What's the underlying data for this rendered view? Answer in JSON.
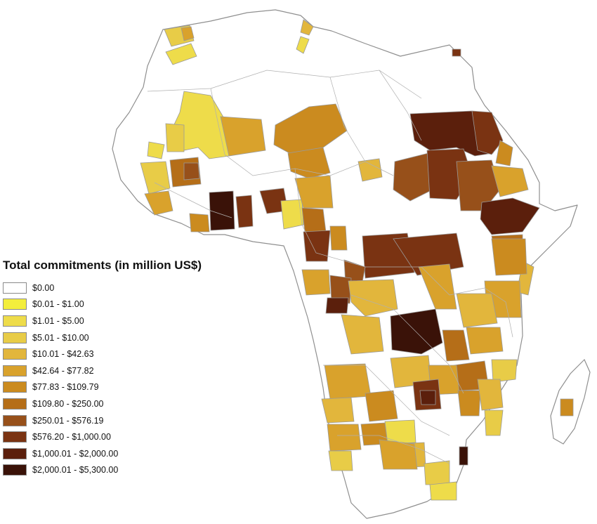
{
  "legend": {
    "title": "Total commitments (in million US$)",
    "classes": [
      {
        "label": "$0.00",
        "color": "#ffffff"
      },
      {
        "label": "$0.01 - $1.00",
        "color": "#f3ee3c"
      },
      {
        "label": "$1.01 - $5.00",
        "color": "#eedc4a"
      },
      {
        "label": "$5.01 - $10.00",
        "color": "#e8cc47"
      },
      {
        "label": "$10.01 - $42.63",
        "color": "#e2b63c"
      },
      {
        "label": "$42.64 - $77.82",
        "color": "#d9a22c"
      },
      {
        "label": "$77.83 - $109.79",
        "color": "#cb8b1f"
      },
      {
        "label": "$109.80 - $250.00",
        "color": "#b56e18"
      },
      {
        "label": "$250.01 - $576.19",
        "color": "#97501a"
      },
      {
        "label": "$576.20 - $1,000.00",
        "color": "#7a3312"
      },
      {
        "label": "$1,000.01 - $2,000.00",
        "color": "#5b1f0c"
      },
      {
        "label": "$2,000.01 - $5,300.00",
        "color": "#3a1208"
      }
    ]
  },
  "map": {
    "border_color": "#9a9a9a",
    "water_color": "#ffffff",
    "regions": [
      {
        "id": "nw-coast-1",
        "cls": 3
      },
      {
        "id": "nw-coast-2",
        "cls": 5
      },
      {
        "id": "nw-coast-3",
        "cls": 2
      },
      {
        "id": "north-small-1",
        "cls": 4
      },
      {
        "id": "north-small-2",
        "cls": 2
      },
      {
        "id": "sahel-west",
        "cls": 2
      },
      {
        "id": "sahel-west-2",
        "cls": 3
      },
      {
        "id": "sahel-mali-east",
        "cls": 5
      },
      {
        "id": "sahel-niger",
        "cls": 6
      },
      {
        "id": "sahel-niger-2",
        "cls": 6
      },
      {
        "id": "sahel-chad",
        "cls": 4
      },
      {
        "id": "sudan-north",
        "cls": 10
      },
      {
        "id": "sudan-east",
        "cls": 9
      },
      {
        "id": "sudan-west",
        "cls": 8
      },
      {
        "id": "sudan-central",
        "cls": 9
      },
      {
        "id": "sudan-south",
        "cls": 8
      },
      {
        "id": "eritrea",
        "cls": 6
      },
      {
        "id": "ethiopia-north",
        "cls": 5
      },
      {
        "id": "ethiopia-central",
        "cls": 10
      },
      {
        "id": "ethiopia-south",
        "cls": 7
      },
      {
        "id": "horn-east",
        "cls": 4
      },
      {
        "id": "west-1",
        "cls": 3
      },
      {
        "id": "west-2",
        "cls": 7
      },
      {
        "id": "west-3",
        "cls": 5
      },
      {
        "id": "west-4",
        "cls": 2
      },
      {
        "id": "west-5",
        "cls": 8
      },
      {
        "id": "ivory-core",
        "cls": 11
      },
      {
        "id": "ghana-1",
        "cls": 9
      },
      {
        "id": "coast-1",
        "cls": 6
      },
      {
        "id": "nigeria-1",
        "cls": 9
      },
      {
        "id": "nigeria-2",
        "cls": 2
      },
      {
        "id": "nigeria-3",
        "cls": 5
      },
      {
        "id": "nigeria-4",
        "cls": 7
      },
      {
        "id": "cameroon-1",
        "cls": 9
      },
      {
        "id": "cameroon-2",
        "cls": 6
      },
      {
        "id": "car-1",
        "cls": 9
      },
      {
        "id": "car-2",
        "cls": 9
      },
      {
        "id": "car-3",
        "cls": 8
      },
      {
        "id": "gabon-1",
        "cls": 5
      },
      {
        "id": "congo-1",
        "cls": 8
      },
      {
        "id": "congo-2",
        "cls": 10
      },
      {
        "id": "drc-north",
        "cls": 4
      },
      {
        "id": "drc-west",
        "cls": 4
      },
      {
        "id": "drc-core",
        "cls": 11
      },
      {
        "id": "drc-east",
        "cls": 5
      },
      {
        "id": "drc-east-2",
        "cls": 7
      },
      {
        "id": "kenya-1",
        "cls": 6
      },
      {
        "id": "kenya-2",
        "cls": 5
      },
      {
        "id": "tanzania-1",
        "cls": 4
      },
      {
        "id": "tanzania-2",
        "cls": 5
      },
      {
        "id": "tanzania-3",
        "cls": 7
      },
      {
        "id": "tanzania-4",
        "cls": 3
      },
      {
        "id": "angola-1",
        "cls": 5
      },
      {
        "id": "angola-2",
        "cls": 4
      },
      {
        "id": "angola-3",
        "cls": 6
      },
      {
        "id": "zambia-1",
        "cls": 4
      },
      {
        "id": "zambia-2",
        "cls": 5
      },
      {
        "id": "zambia-core",
        "cls": 9
      },
      {
        "id": "zambia-core-2",
        "cls": 10
      },
      {
        "id": "malawi",
        "cls": 6
      },
      {
        "id": "mozambique-1",
        "cls": 4
      },
      {
        "id": "mozambique-2",
        "cls": 3
      },
      {
        "id": "namibia-1",
        "cls": 5
      },
      {
        "id": "namibia-2",
        "cls": 3
      },
      {
        "id": "namibia-3",
        "cls": 6
      },
      {
        "id": "botswana-1",
        "cls": 2
      },
      {
        "id": "botswana-2",
        "cls": 4
      },
      {
        "id": "south-africa-1",
        "cls": 5
      },
      {
        "id": "south-africa-2",
        "cls": 3
      },
      {
        "id": "south-africa-3",
        "cls": 2
      },
      {
        "id": "swaziland",
        "cls": 11
      },
      {
        "id": "madagascar-1",
        "cls": 6
      },
      {
        "id": "sinai-1",
        "cls": 9
      }
    ]
  }
}
